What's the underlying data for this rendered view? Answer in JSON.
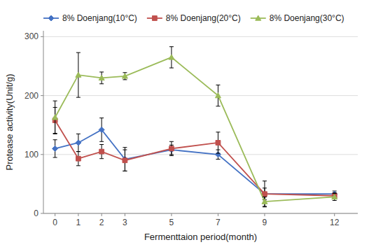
{
  "chart_data": {
    "type": "line",
    "x": [
      0,
      1,
      2,
      3,
      5,
      7,
      9,
      12
    ],
    "series": [
      {
        "name": "8% Doenjang(10°C)",
        "color": "#4472C4",
        "marker": "diamond",
        "values": [
          110,
          120,
          142,
          92,
          108,
          100,
          33,
          33
        ],
        "errors": [
          15,
          15,
          20,
          20,
          8,
          8,
          10,
          5
        ]
      },
      {
        "name": "8% Doenjang(20°C)",
        "color": "#C0504D",
        "marker": "square",
        "values": [
          158,
          93,
          105,
          90,
          110,
          120,
          33,
          30
        ],
        "errors": [
          22,
          12,
          12,
          18,
          12,
          18,
          22,
          5
        ]
      },
      {
        "name": "8% Doenjang(30°C)",
        "color": "#9BBB59",
        "marker": "triangle",
        "values": [
          163,
          235,
          230,
          233,
          265,
          200,
          20,
          28
        ],
        "errors": [
          28,
          38,
          10,
          6,
          18,
          18,
          8,
          6
        ]
      }
    ],
    "xlabel": "Fermenttaion period(month)",
    "ylabel": "Protease activity(Unit/g)",
    "xlim": [
      -0.5,
      13
    ],
    "ylim": [
      0,
      310
    ],
    "xticks": [
      0,
      1,
      2,
      3,
      5,
      7,
      9,
      12
    ],
    "yticks": [
      0,
      100,
      200,
      300
    ],
    "grid": true,
    "legend": "top"
  }
}
